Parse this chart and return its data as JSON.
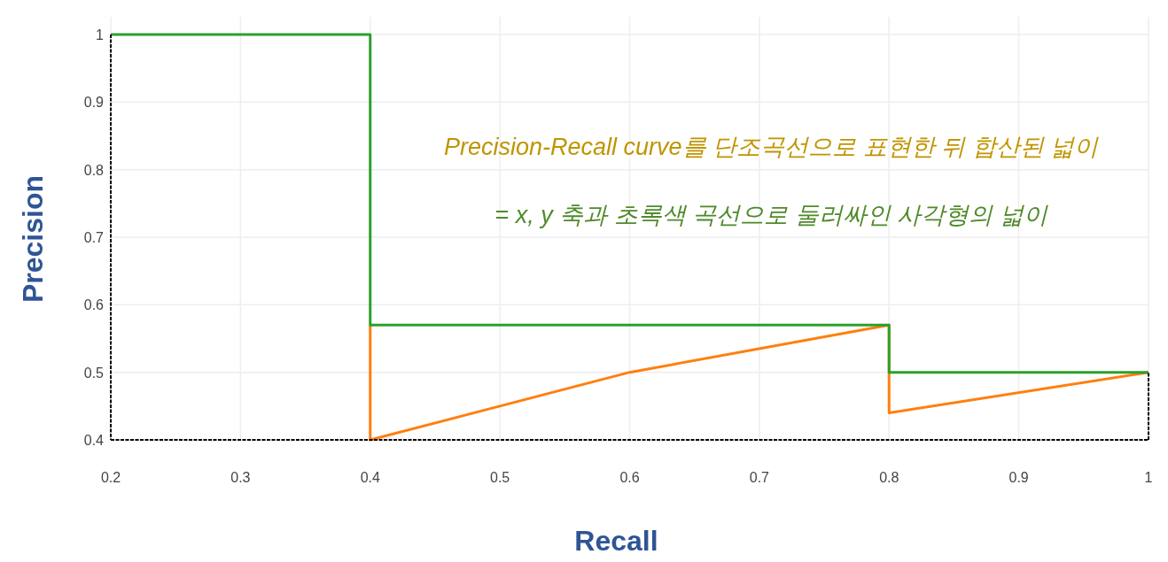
{
  "chart_data": {
    "type": "line",
    "xlabel": "Recall",
    "ylabel": "Precision",
    "annotations": [
      "Precision-Recall curve를 단조곡선으로 표현한 뒤 합산된 넓이",
      "= x, y 축과 초록색 곡선으로 둘러싸인 사각형의 넓이"
    ],
    "series": [
      {
        "color": "#ff7f0e",
        "line_style": "solid",
        "x": [
          0.4,
          0.4,
          0.6,
          0.8,
          0.8,
          1
        ],
        "values": [
          0.57,
          0.4,
          0.5,
          0.57,
          0.44,
          0.5
        ]
      },
      {
        "color": "#2ca02c",
        "line_style": "solid",
        "x": [
          0.2,
          0.4,
          0.4,
          0.8,
          0.8,
          1
        ],
        "values": [
          1,
          1,
          0.57,
          0.57,
          0.5,
          0.5
        ]
      },
      {
        "color": "#000000",
        "line_style": "dashed",
        "x": [
          1,
          1
        ],
        "values": [
          0.4,
          0.5
        ]
      }
    ],
    "ref_lines": [
      {
        "axis": "x",
        "value": 0.2,
        "color": "#000000",
        "line_style": "dashed"
      },
      {
        "axis": "y",
        "value": 0.4,
        "color": "#000000",
        "line_style": "dashed"
      }
    ],
    "xlim": [
      0.2,
      1
    ],
    "ylim": [
      0.4,
      1
    ],
    "xticks": [
      0.2,
      0.3,
      0.4,
      0.5,
      0.6,
      0.7,
      0.8,
      0.9,
      1
    ],
    "yticks": [
      0.4,
      0.5,
      0.6,
      0.7,
      0.8,
      0.9,
      1
    ],
    "grid": true,
    "marker": "none"
  }
}
